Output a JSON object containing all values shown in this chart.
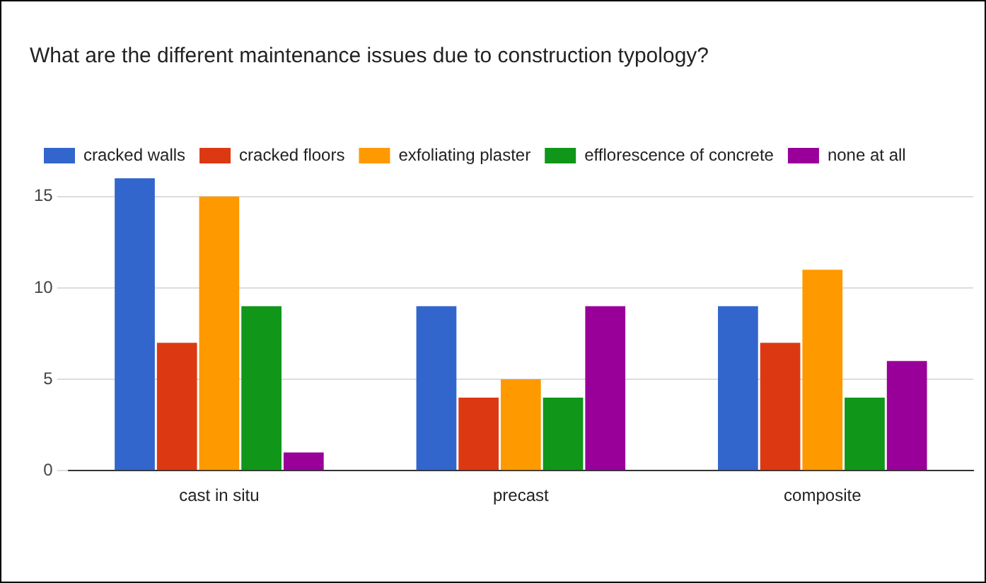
{
  "chart_data": {
    "type": "bar",
    "title": "What are the different maintenance issues due to construction typology?",
    "categories": [
      "cast in situ",
      "precast",
      "composite"
    ],
    "series": [
      {
        "name": "cracked walls",
        "color": "#3366cc",
        "values": [
          16,
          9,
          9
        ]
      },
      {
        "name": "cracked floors",
        "color": "#dc3912",
        "values": [
          7,
          4,
          7
        ]
      },
      {
        "name": "exfoliating plaster",
        "color": "#ff9900",
        "values": [
          15,
          5,
          11
        ]
      },
      {
        "name": "efflorescence of concrete",
        "color": "#109618",
        "values": [
          9,
          4,
          4
        ]
      },
      {
        "name": "none at all",
        "color": "#990099",
        "values": [
          1,
          9,
          6
        ]
      }
    ],
    "ylim": [
      0,
      16
    ],
    "yticks": [
      0,
      5,
      10,
      15
    ],
    "grid": "y",
    "legend": "top"
  }
}
